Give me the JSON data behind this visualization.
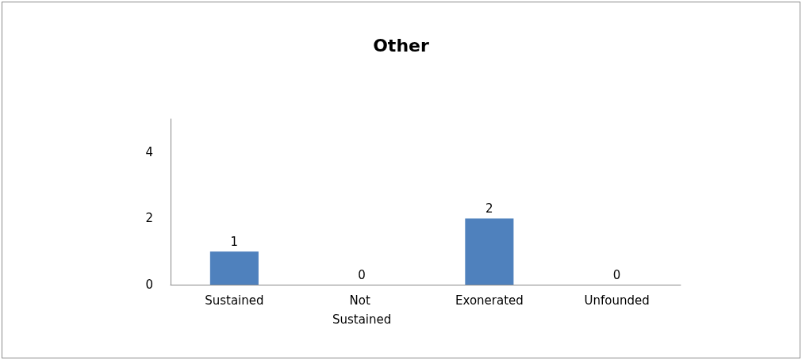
{
  "chart_data": {
    "type": "bar",
    "title": "Other",
    "categories": [
      "Sustained",
      "Not Sustained",
      "Exonerated",
      "Unfounded"
    ],
    "values": [
      1,
      0,
      2,
      0
    ],
    "color": "#4f81bd",
    "ylim": [
      0,
      5
    ],
    "yticks": [
      0,
      2,
      4
    ],
    "grid": false,
    "data_labels": true
  }
}
